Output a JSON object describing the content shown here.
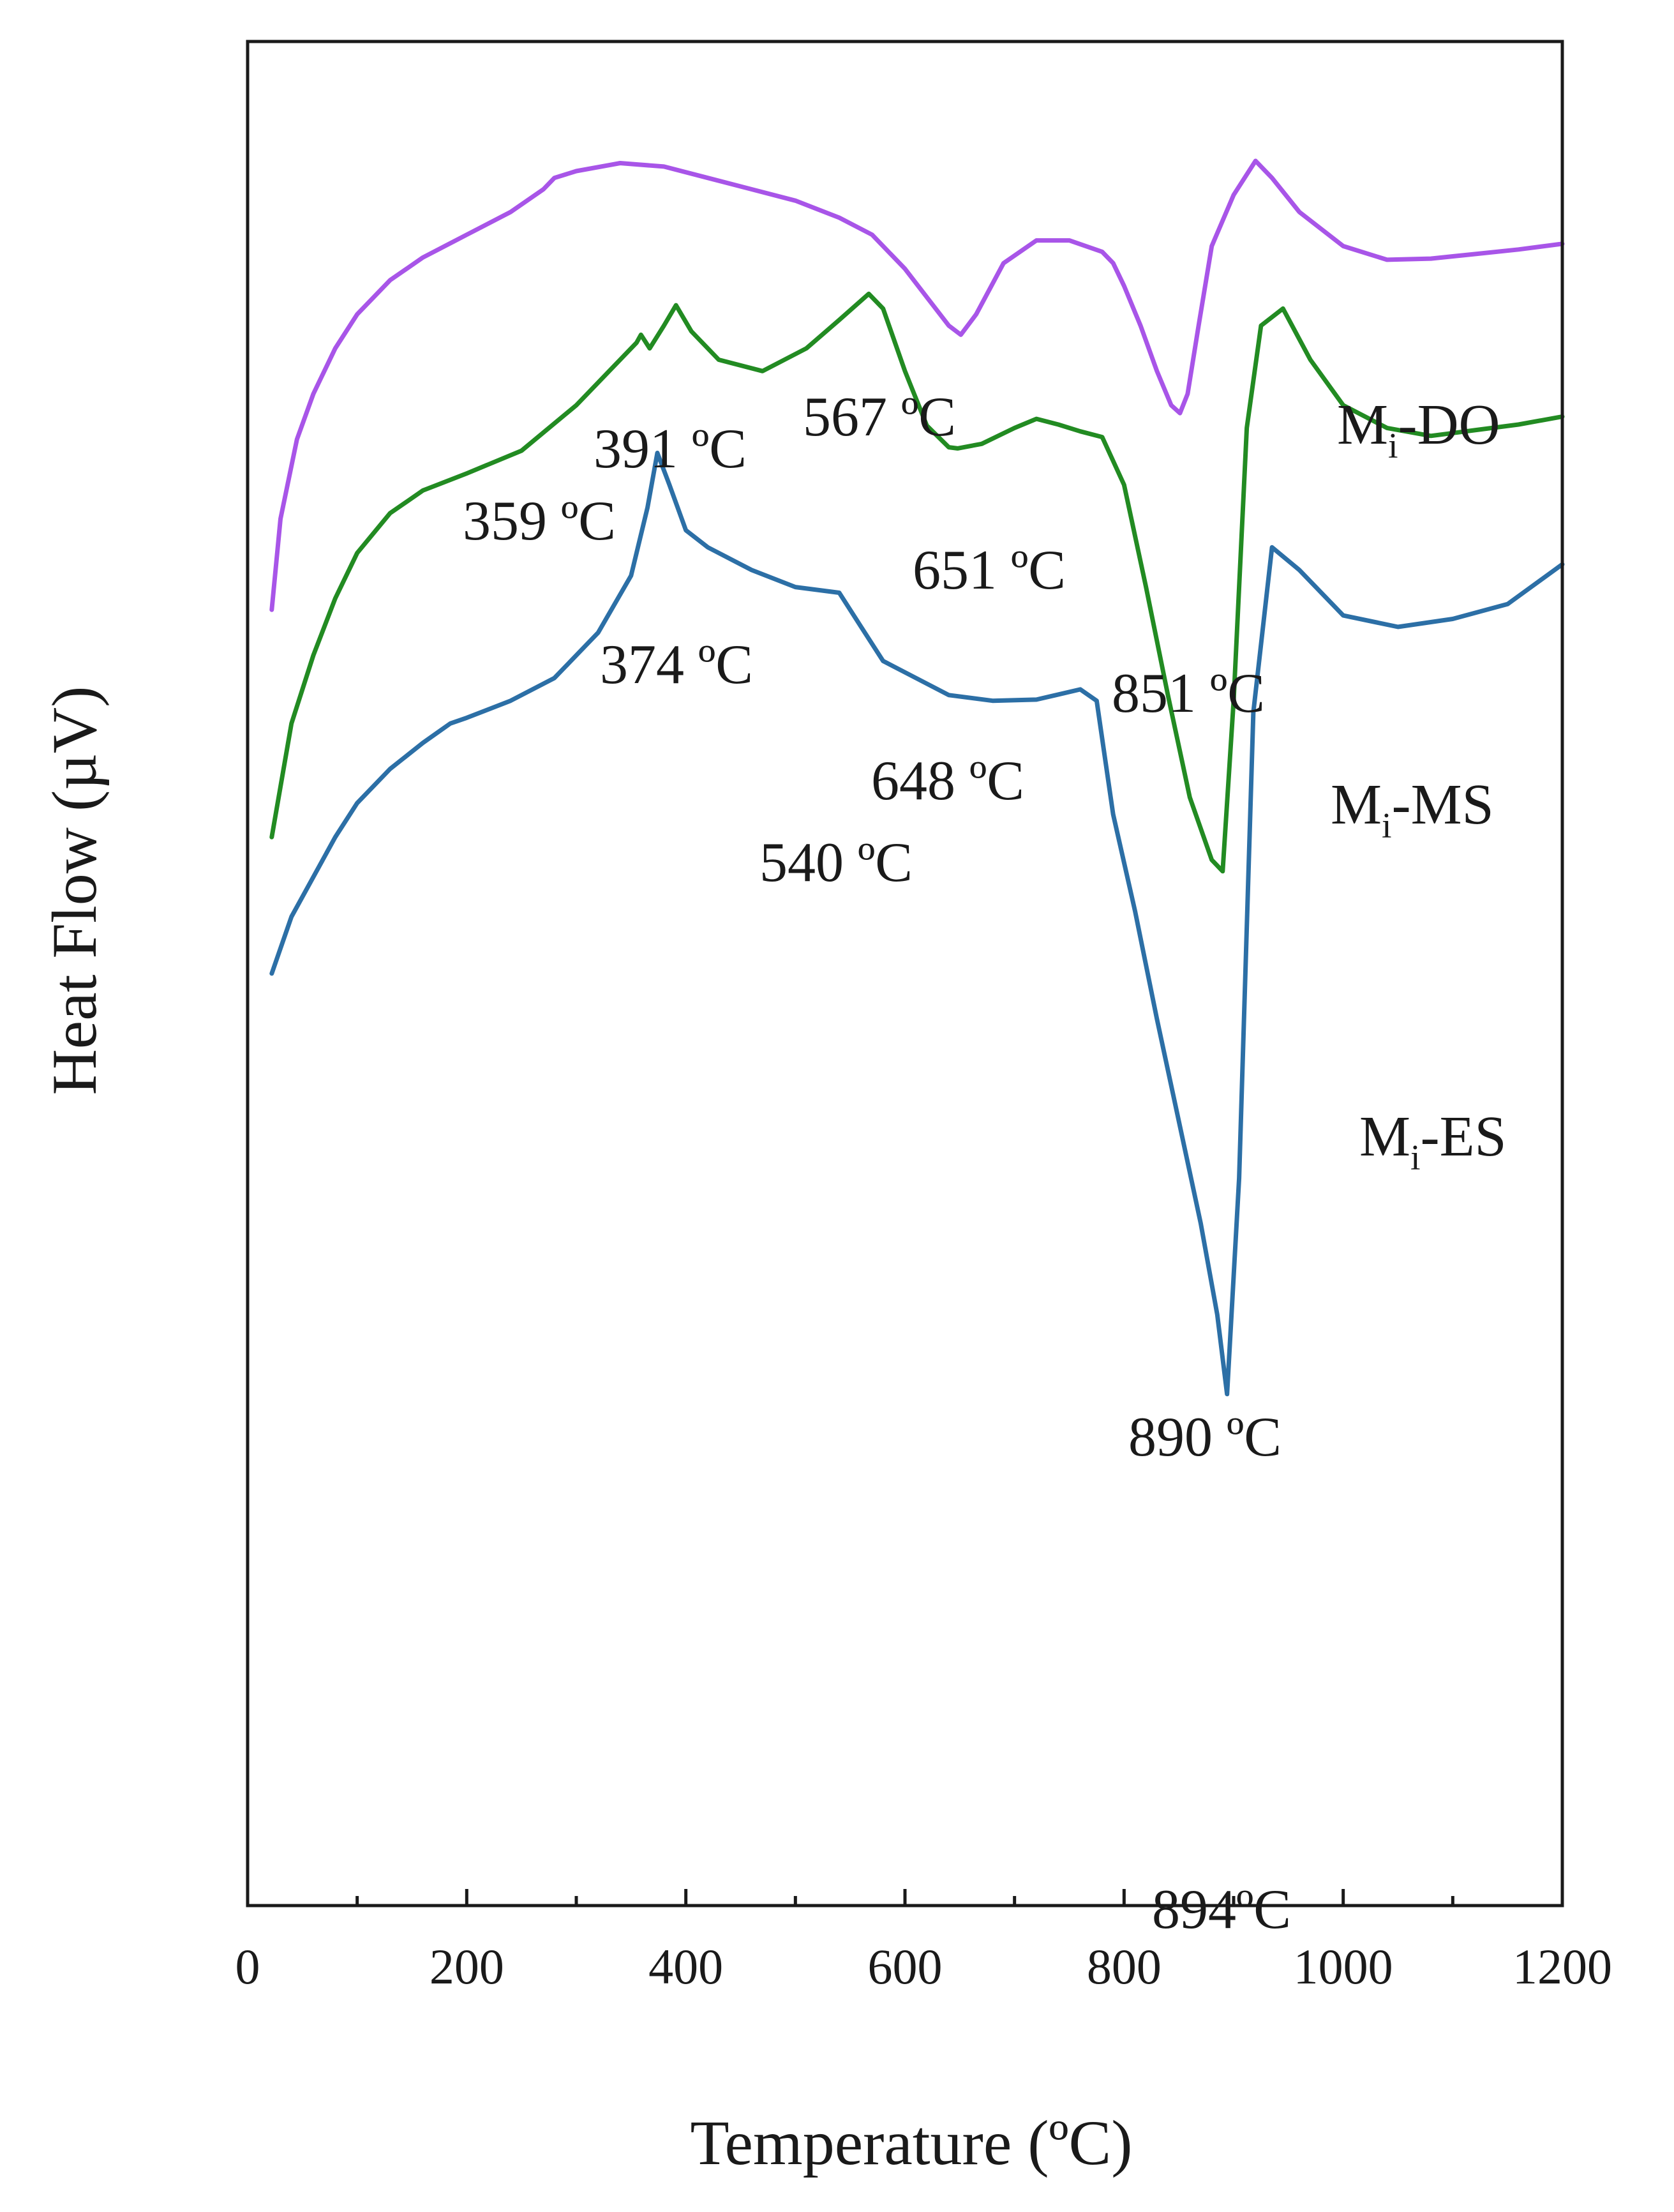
{
  "chart_data": {
    "type": "line",
    "title": "",
    "xlabel": "Temperature (ºC)",
    "ylabel": "Heat Flow (µV)",
    "xlim": [
      0,
      1200
    ],
    "ylim": [
      -12,
      152
    ],
    "xticks": [
      0,
      200,
      400,
      600,
      800,
      1000,
      1200
    ],
    "xtick_labels": [
      "0",
      "200",
      "400",
      "600",
      "800",
      "1000",
      "1200"
    ],
    "yticks_shown": false,
    "grid": false,
    "series": [
      {
        "name": "Mi-DO",
        "label_main": "M",
        "label_sub": "i",
        "label_rest": "-DO",
        "color": "#a855e8",
        "x": [
          22,
          30,
          45,
          60,
          80,
          100,
          130,
          160,
          200,
          240,
          270,
          280,
          300,
          340,
          380,
          420,
          460,
          500,
          540,
          570,
          600,
          620,
          640,
          651,
          665,
          690,
          720,
          750,
          780,
          790,
          800,
          815,
          830,
          843,
          851,
          858,
          868,
          880,
          900,
          920,
          935,
          960,
          1000,
          1040,
          1080,
          1120,
          1160,
          1200
        ],
        "y": [
          102,
          110,
          117,
          121,
          125,
          128,
          131,
          133,
          135,
          137,
          139,
          140,
          140.6,
          141.3,
          141,
          140,
          139,
          138,
          136.5,
          135,
          132,
          129.5,
          127,
          126.2,
          128,
          132.5,
          134.5,
          134.5,
          133.5,
          132.5,
          130.5,
          127,
          123,
          120,
          119.3,
          121,
          127,
          134,
          138.5,
          141.5,
          140,
          137,
          134,
          132.8,
          132.9,
          133.3,
          133.7,
          134.2
        ]
      },
      {
        "name": "Mi-MS",
        "label_main": "M",
        "label_sub": "i",
        "label_rest": "-MS",
        "color": "#228b22",
        "x": [
          22,
          40,
          60,
          80,
          100,
          130,
          160,
          200,
          250,
          300,
          330,
          355,
          359,
          367,
          380,
          391,
          405,
          430,
          470,
          510,
          540,
          567,
          580,
          600,
          620,
          640,
          648,
          670,
          700,
          720,
          740,
          760,
          780,
          800,
          820,
          840,
          860,
          880,
          890,
          900,
          912,
          925,
          945,
          970,
          1000,
          1040,
          1080,
          1120,
          1160,
          1200
        ],
        "y": [
          82,
          92,
          98,
          103,
          107,
          110.5,
          112.5,
          114,
          116,
          120,
          123,
          125.5,
          126.2,
          125,
          127,
          128.8,
          126.5,
          124,
          123,
          125,
          127.5,
          129.8,
          128.5,
          123,
          118.2,
          116.3,
          116.2,
          116.6,
          118,
          118.8,
          118.3,
          117.7,
          117.2,
          113,
          104,
          94.5,
          85.5,
          80,
          79,
          94,
          118,
          127,
          128.5,
          124,
          120,
          118,
          117.3,
          117.8,
          118.3,
          119
        ]
      },
      {
        "name": "Mi-ES",
        "label_main": "M",
        "label_sub": "i",
        "label_rest": "-ES",
        "color": "#2c6fa6",
        "x": [
          22,
          40,
          60,
          80,
          100,
          130,
          160,
          185,
          200,
          240,
          280,
          320,
          350,
          365,
          374,
          385,
          400,
          420,
          460,
          500,
          540,
          560,
          580,
          600,
          640,
          680,
          720,
          760,
          775,
          790,
          810,
          830,
          850,
          870,
          885,
          894,
          905,
          918,
          935,
          960,
          1000,
          1050,
          1100,
          1150,
          1200
        ],
        "y": [
          70,
          75,
          78.5,
          82,
          85,
          88,
          90.3,
          92,
          92.5,
          94,
          96,
          100,
          105,
          111,
          115.8,
          113,
          109,
          107.5,
          105.5,
          104,
          103.5,
          100.5,
          97.5,
          96.5,
          94.5,
          94,
          94.1,
          95,
          94,
          84,
          75.5,
          66,
          57,
          48,
          40,
          33,
          52,
          93,
          107.5,
          105.5,
          101.5,
          100.5,
          101.2,
          102.5,
          106
        ]
      }
    ],
    "annotations": [
      {
        "text": "359 ºC",
        "x": 359,
        "series": "Mi-MS"
      },
      {
        "text": "391 ºC",
        "x": 391,
        "series": "Mi-MS"
      },
      {
        "text": "567 ºC",
        "x": 567,
        "series": "Mi-MS"
      },
      {
        "text": "651 ºC",
        "x": 651,
        "series": "Mi-DO"
      },
      {
        "text": "851 ºC",
        "x": 851,
        "series": "Mi-DO"
      },
      {
        "text": "374 ºC",
        "x": 374,
        "series": "Mi-ES"
      },
      {
        "text": "540 ºC",
        "x": 540,
        "series": "Mi-ES"
      },
      {
        "text": "648 ºC",
        "x": 648,
        "series": "Mi-MS"
      },
      {
        "text": "890 ºC",
        "x": 890,
        "series": "Mi-MS"
      },
      {
        "text": "894ºC",
        "x": 894,
        "series": "Mi-ES"
      }
    ]
  }
}
